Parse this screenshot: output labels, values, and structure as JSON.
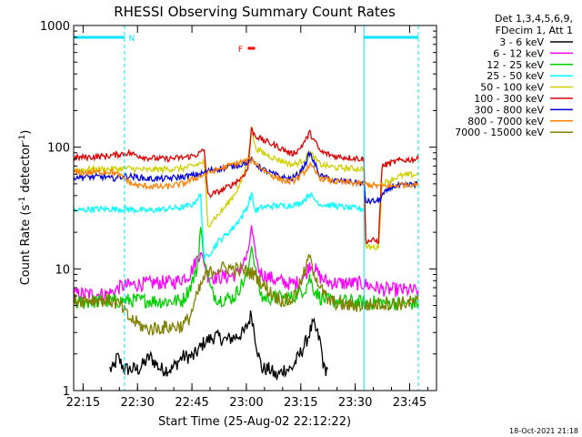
{
  "chart_data": {
    "type": "line",
    "title": "RHESSI Observing Summary Count Rates",
    "xlabel": "Start Time (25-Aug-02 22:12:22)",
    "ylabel_main": "Count Rate (s",
    "ylabel_sup1": "-1",
    "ylabel_mid": " detector",
    "ylabel_sup2": "-1",
    "ylabel_end": ")",
    "x_unit": "minutes since 22:12:22",
    "xlim": [
      0,
      100
    ],
    "ylim": [
      1,
      1000
    ],
    "y_scale": "log",
    "x_ticks": [
      {
        "x": 2.6,
        "label": "22:15"
      },
      {
        "x": 17.6,
        "label": "22:30"
      },
      {
        "x": 32.6,
        "label": "22:45"
      },
      {
        "x": 47.6,
        "label": "23:00"
      },
      {
        "x": 62.6,
        "label": "23:15"
      },
      {
        "x": 77.6,
        "label": "23:30"
      },
      {
        "x": 92.6,
        "label": "23:45"
      }
    ],
    "y_ticks": [
      {
        "y": 1,
        "label": "1"
      },
      {
        "y": 10,
        "label": "10"
      },
      {
        "y": 100,
        "label": "100"
      },
      {
        "y": 1000,
        "label": "1000"
      }
    ],
    "legend_header": [
      "Det 1,3,4,5,6,9,",
      "FDecim 1, Att 1"
    ],
    "legend_position": "outside-right",
    "annotations": {
      "flags": [
        {
          "label": "N",
          "color": "#00e5ff",
          "segments": [
            [
              0,
              14
            ],
            [
              80,
              95
            ]
          ],
          "y": 800
        },
        {
          "label": "F",
          "color": "#ff0000",
          "segments": [
            [
              48,
              50
            ]
          ],
          "y": 650
        }
      ],
      "vlines": [
        {
          "x": 14,
          "color": "#00e5ff",
          "dash": true
        },
        {
          "x": 80,
          "color": "#00e5ff",
          "dash": false
        },
        {
          "x": 95,
          "color": "#00e5ff",
          "dash": true
        }
      ]
    },
    "footer_timestamp": "18-Oct-2021 21:18",
    "series": [
      {
        "name": "3 - 6 keV",
        "color": "#000000",
        "x": [
          10,
          11,
          12,
          14,
          18,
          21,
          24,
          27,
          30,
          33,
          36,
          39,
          42,
          45,
          47,
          48,
          49,
          50,
          51,
          52,
          54,
          56,
          58,
          60,
          62,
          64,
          65,
          66,
          67,
          68,
          69,
          70
        ],
        "y": [
          1.5,
          1.5,
          1.9,
          1.5,
          1.5,
          1.9,
          1.5,
          1.5,
          1.9,
          1.9,
          2.5,
          2.8,
          2.6,
          2.8,
          3.0,
          3.5,
          4.3,
          2.8,
          1.9,
          1.5,
          1.5,
          1.3,
          1.5,
          1.5,
          1.9,
          2.5,
          3.0,
          3.5,
          3.0,
          2.5,
          1.5,
          1.5
        ]
      },
      {
        "name": "6 - 12 keV",
        "color": "#ff00ff",
        "x": [
          0,
          5,
          9,
          11,
          13,
          18,
          23,
          28,
          32,
          35,
          37,
          39,
          42,
          45,
          48,
          49,
          50,
          51,
          52,
          54,
          56,
          58,
          60,
          62,
          64,
          65,
          66,
          68,
          70,
          74,
          78,
          80,
          85,
          90,
          95
        ],
        "y": [
          6.2,
          6.2,
          6.2,
          6.5,
          7.2,
          7.5,
          7.7,
          7.8,
          9.0,
          14.0,
          8.8,
          8.5,
          8.6,
          9.0,
          13.0,
          22.0,
          14.0,
          10.0,
          9.0,
          8.5,
          8.0,
          7.8,
          7.5,
          7.8,
          9.0,
          11.0,
          10.5,
          8.5,
          7.8,
          7.6,
          7.6,
          7.5,
          6.8,
          6.7,
          6.6
        ]
      },
      {
        "name": "12 - 25 keV",
        "color": "#00d000",
        "x": [
          0,
          5,
          10,
          15,
          20,
          25,
          30,
          32,
          34,
          35,
          36,
          38,
          40,
          44,
          48,
          49,
          50,
          51,
          52,
          56,
          60,
          64,
          65,
          66,
          68,
          70,
          75,
          80,
          85,
          90,
          95
        ],
        "y": [
          5.2,
          5.4,
          5.4,
          5.5,
          5.5,
          5.4,
          5.5,
          7.0,
          10.0,
          22.0,
          12.0,
          6.5,
          5.6,
          5.8,
          9.0,
          16.0,
          10.0,
          7.0,
          5.8,
          5.8,
          5.8,
          7.0,
          8.5,
          7.0,
          5.8,
          5.5,
          5.4,
          5.3,
          5.3,
          5.2,
          5.2
        ]
      },
      {
        "name": "25 - 50 keV",
        "color": "#00ffff",
        "x": [
          0,
          5,
          10,
          15,
          20,
          25,
          30,
          33,
          34,
          35,
          36,
          38,
          40,
          42,
          44,
          46,
          48,
          49,
          50,
          52,
          55,
          58,
          62,
          64,
          65,
          66,
          68,
          72,
          75,
          80
        ],
        "y": [
          30,
          31,
          31,
          31,
          30,
          31,
          32,
          34,
          38,
          40,
          12,
          14,
          17,
          19,
          22,
          26,
          33,
          42,
          30,
          32,
          33,
          33,
          34,
          38,
          42,
          38,
          34,
          33,
          32,
          31
        ]
      },
      {
        "name": "50 - 100 keV",
        "color": "#d0d000",
        "x": [
          0,
          5,
          10,
          15,
          20,
          25,
          30,
          33,
          35,
          36,
          37,
          38,
          40,
          42,
          44,
          46,
          48,
          49,
          50,
          52,
          55,
          58,
          60,
          62,
          64,
          65,
          66,
          68,
          72,
          76,
          80,
          80.5,
          84,
          85,
          88,
          90,
          95
        ],
        "y": [
          65,
          66,
          66,
          67,
          65,
          66,
          67,
          70,
          74,
          76,
          22,
          25,
          28,
          33,
          40,
          50,
          78,
          150,
          100,
          90,
          82,
          76,
          72,
          74,
          82,
          92,
          84,
          72,
          68,
          67,
          66,
          15,
          15,
          50,
          55,
          58,
          60
        ]
      },
      {
        "name": "100 - 300 keV",
        "color": "#e00000",
        "x": [
          0,
          5,
          10,
          15,
          20,
          25,
          30,
          33,
          35,
          36,
          37,
          40,
          43,
          46,
          48,
          49,
          50,
          52,
          55,
          58,
          60,
          62,
          64,
          65,
          66,
          68,
          72,
          76,
          80,
          80.5,
          84,
          85,
          88,
          90,
          95
        ],
        "y": [
          82,
          83,
          85,
          90,
          82,
          80,
          82,
          85,
          90,
          95,
          40,
          43,
          48,
          55,
          66,
          140,
          125,
          115,
          105,
          95,
          88,
          95,
          115,
          132,
          118,
          92,
          84,
          82,
          80,
          17,
          17,
          70,
          75,
          78,
          80
        ]
      },
      {
        "name": "300 - 800 keV",
        "color": "#0000e0",
        "x": [
          0,
          5,
          9,
          10,
          12,
          14,
          17,
          20,
          25,
          30,
          35,
          36,
          38,
          42,
          46,
          48,
          49,
          50,
          52,
          55,
          58,
          60,
          62,
          64,
          65,
          66,
          68,
          72,
          76,
          80,
          80.5,
          84,
          85,
          88,
          90,
          95
        ],
        "y": [
          57,
          57,
          57,
          55,
          56,
          58,
          57,
          55,
          55,
          57,
          60,
          62,
          65,
          68,
          72,
          76,
          78,
          74,
          66,
          60,
          56,
          55,
          60,
          75,
          90,
          78,
          58,
          53,
          52,
          50,
          36,
          36,
          40,
          48,
          48,
          50
        ]
      },
      {
        "name": "800 - 7000 keV",
        "color": "#ff8000",
        "x": [
          0,
          5,
          10,
          12,
          14,
          16,
          18,
          20,
          25,
          30,
          35,
          40,
          45,
          48,
          49,
          50,
          52,
          55,
          58,
          60,
          62,
          64,
          65,
          66,
          68,
          72,
          76,
          80,
          84,
          88,
          90,
          95
        ],
        "y": [
          62,
          62,
          63,
          60,
          55,
          50,
          48,
          48,
          47,
          50,
          58,
          66,
          74,
          78,
          78,
          75,
          66,
          58,
          53,
          52,
          56,
          65,
          72,
          66,
          56,
          52,
          51,
          50,
          48,
          48,
          49,
          50
        ]
      },
      {
        "name": "7000 - 15000 keV",
        "color": "#808000",
        "x": [
          0,
          5,
          10,
          13,
          15,
          18,
          20,
          25,
          30,
          32,
          34,
          36,
          38,
          40,
          42,
          44,
          46,
          48,
          50,
          52,
          54,
          56,
          58,
          60,
          62,
          64,
          65,
          66,
          68,
          70,
          75,
          80,
          85,
          90,
          95
        ],
        "y": [
          5.5,
          5.6,
          5.5,
          5.0,
          4.0,
          3.5,
          3.2,
          3.3,
          3.4,
          4.0,
          6.0,
          8.5,
          9.5,
          10.0,
          10.2,
          10.0,
          9.8,
          9.5,
          9.0,
          7.5,
          6.5,
          5.8,
          5.5,
          5.5,
          7.0,
          10.0,
          13.0,
          10.0,
          7.0,
          5.5,
          5.0,
          5.0,
          5.2,
          5.2,
          5.4
        ]
      }
    ]
  }
}
